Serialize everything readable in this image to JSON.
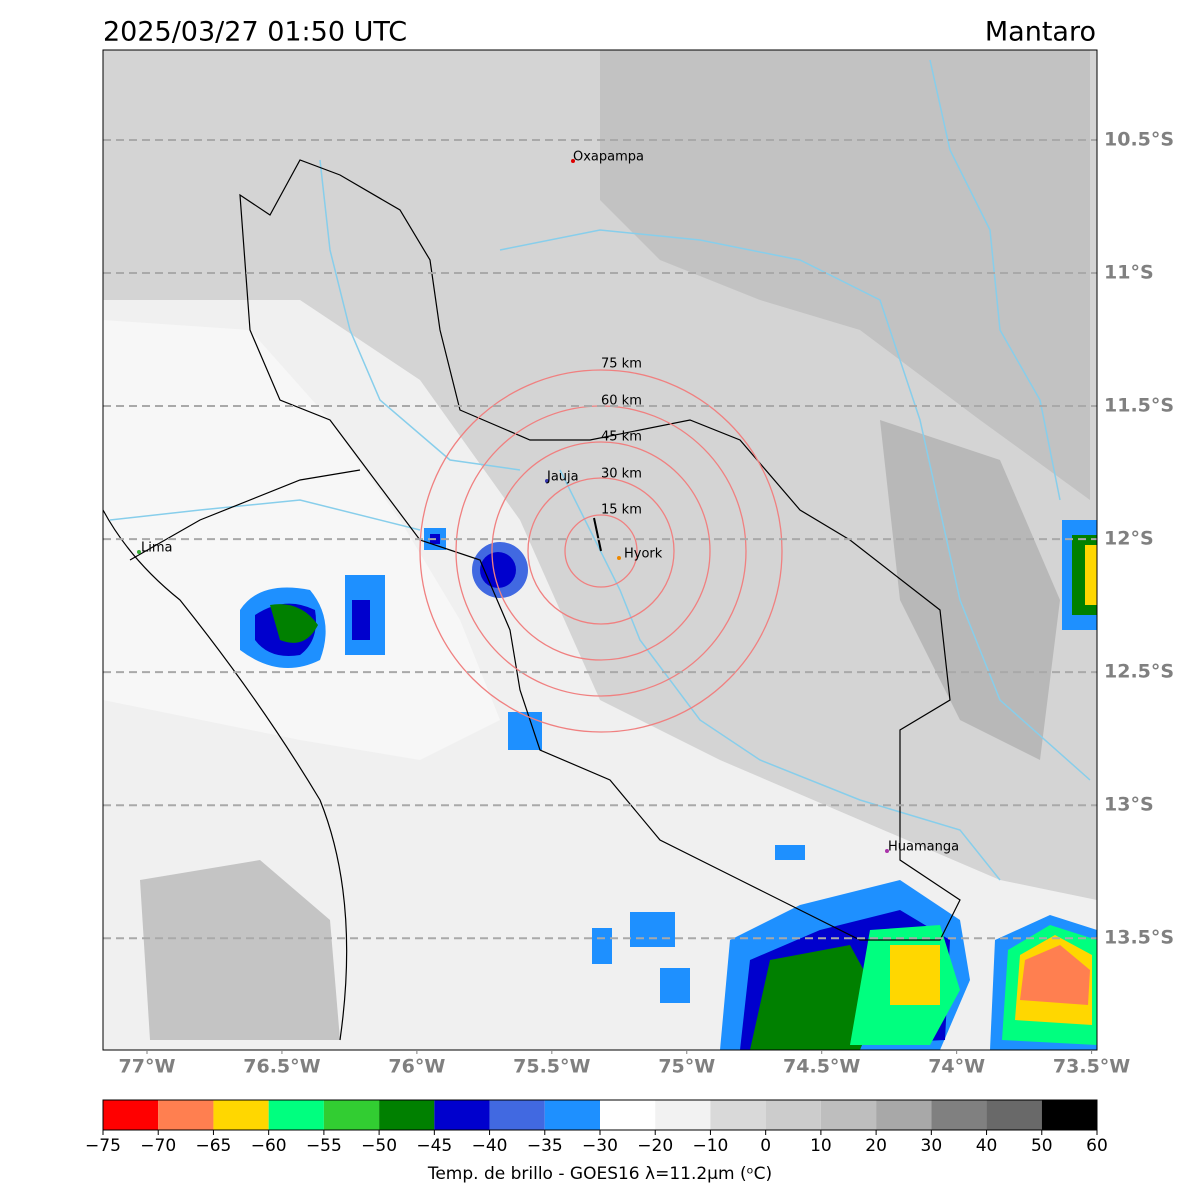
{
  "header": {
    "title": "2025/03/27 01:50 UTC",
    "location": "Mantaro"
  },
  "map": {
    "xlim": [
      -77.163,
      -73.48
    ],
    "ylim": [
      -13.92,
      -10.162
    ],
    "ygrid": true,
    "xticks": [
      {
        "value": -77,
        "label": "77°W"
      },
      {
        "value": -76.5,
        "label": "76.5°W"
      },
      {
        "value": -76,
        "label": "76°W"
      },
      {
        "value": -75.5,
        "label": "75.5°W"
      },
      {
        "value": -75,
        "label": "75°W"
      },
      {
        "value": -74.5,
        "label": "74.5°W"
      },
      {
        "value": -74,
        "label": "74°W"
      },
      {
        "value": -73.5,
        "label": "73.5°W"
      }
    ],
    "yticks": [
      {
        "value": -10.5,
        "label": "10.5°S"
      },
      {
        "value": -11,
        "label": "11°S"
      },
      {
        "value": -11.5,
        "label": "11.5°S"
      },
      {
        "value": -12,
        "label": "12°S"
      },
      {
        "value": -12.5,
        "label": "12.5°S"
      },
      {
        "value": -13,
        "label": "13°S"
      },
      {
        "value": -13.5,
        "label": "13.5°S"
      }
    ],
    "places": [
      "Oxapampa",
      "Jauja",
      "Lima",
      "Hyork",
      "Huamanga"
    ],
    "rings": [
      "15 km",
      "30 km",
      "45 km",
      "60 km",
      "75 km"
    ]
  },
  "colorbar": {
    "label": "Temp. de brillo - GOES16 λ=11.2μm (ᵒC)",
    "ticks": [
      {
        "value": -75,
        "label": "−75"
      },
      {
        "value": -70,
        "label": "−70"
      },
      {
        "value": -65,
        "label": "−65"
      },
      {
        "value": -60,
        "label": "−60"
      },
      {
        "value": -55,
        "label": "−55"
      },
      {
        "value": -50,
        "label": "−50"
      },
      {
        "value": -45,
        "label": "−45"
      },
      {
        "value": -40,
        "label": "−40"
      },
      {
        "value": -35,
        "label": "−35"
      },
      {
        "value": -30,
        "label": "−30"
      },
      {
        "value": -20,
        "label": "−20"
      },
      {
        "value": -10,
        "label": "−10"
      },
      0,
      10,
      20,
      30,
      40,
      50,
      60
    ],
    "colors": [
      "#ff0000",
      "#ff7f50",
      "#ffd700",
      "#00ff7f",
      "#32cd32",
      "#008000",
      "#0000cd",
      "#4169e1",
      "#1e90ff",
      "#ffffff",
      "#f2f2f2",
      "#d9d9d9",
      "#cccccc",
      "#bebebe",
      "#a8a8a8",
      "#808080",
      "#696969",
      "#000000"
    ]
  }
}
